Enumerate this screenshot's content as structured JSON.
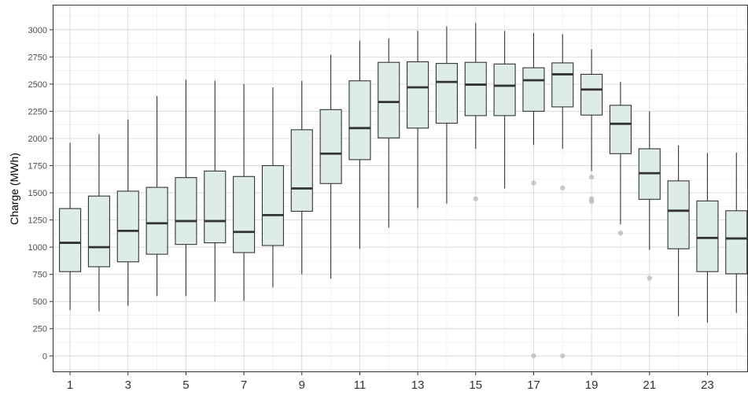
{
  "chart_data": {
    "type": "boxplot",
    "ylabel": "Charge (MWh)",
    "xlabel": "",
    "y_ticks": [
      0,
      250,
      500,
      750,
      1000,
      1250,
      1500,
      1750,
      2000,
      2250,
      2500,
      2750,
      3000
    ],
    "x_tick_labels": [
      "1",
      "3",
      "5",
      "7",
      "9",
      "11",
      "13",
      "15",
      "17",
      "19",
      "21",
      "23"
    ],
    "ylim": [
      -150,
      3230
    ],
    "xlim": [
      0.4,
      24.4
    ],
    "grid": true,
    "box_fill": "#deece8",
    "box_stroke": "#333333",
    "outlier_color": "#bbbbbb",
    "boxes": [
      {
        "x": 1,
        "min": 420,
        "q1": 775,
        "median": 1040,
        "q3": 1355,
        "max": 1960,
        "outliers": []
      },
      {
        "x": 2,
        "min": 410,
        "q1": 820,
        "median": 1000,
        "q3": 1470,
        "max": 2040,
        "outliers": []
      },
      {
        "x": 3,
        "min": 460,
        "q1": 865,
        "median": 1150,
        "q3": 1515,
        "max": 2175,
        "outliers": []
      },
      {
        "x": 4,
        "min": 550,
        "q1": 935,
        "median": 1220,
        "q3": 1550,
        "max": 2390,
        "outliers": []
      },
      {
        "x": 5,
        "min": 550,
        "q1": 1025,
        "median": 1240,
        "q3": 1640,
        "max": 2540,
        "outliers": []
      },
      {
        "x": 6,
        "min": 500,
        "q1": 1040,
        "median": 1240,
        "q3": 1700,
        "max": 2530,
        "outliers": []
      },
      {
        "x": 7,
        "min": 505,
        "q1": 950,
        "median": 1140,
        "q3": 1650,
        "max": 2500,
        "outliers": []
      },
      {
        "x": 8,
        "min": 630,
        "q1": 1015,
        "median": 1295,
        "q3": 1750,
        "max": 2470,
        "outliers": []
      },
      {
        "x": 9,
        "min": 750,
        "q1": 1330,
        "median": 1540,
        "q3": 2080,
        "max": 2530,
        "outliers": []
      },
      {
        "x": 10,
        "min": 710,
        "q1": 1585,
        "median": 1860,
        "q3": 2265,
        "max": 2770,
        "outliers": []
      },
      {
        "x": 11,
        "min": 985,
        "q1": 1805,
        "median": 2095,
        "q3": 2530,
        "max": 2900,
        "outliers": []
      },
      {
        "x": 12,
        "min": 1180,
        "q1": 2005,
        "median": 2335,
        "q3": 2700,
        "max": 2920,
        "outliers": []
      },
      {
        "x": 13,
        "min": 1360,
        "q1": 2095,
        "median": 2470,
        "q3": 2705,
        "max": 2990,
        "outliers": []
      },
      {
        "x": 14,
        "min": 1400,
        "q1": 2140,
        "median": 2520,
        "q3": 2690,
        "max": 3030,
        "outliers": []
      },
      {
        "x": 15,
        "min": 1905,
        "q1": 2210,
        "median": 2495,
        "q3": 2700,
        "max": 3060,
        "outliers": [
          1445
        ]
      },
      {
        "x": 16,
        "min": 1540,
        "q1": 2210,
        "median": 2485,
        "q3": 2685,
        "max": 2990,
        "outliers": []
      },
      {
        "x": 17,
        "min": 1940,
        "q1": 2250,
        "median": 2535,
        "q3": 2650,
        "max": 2970,
        "outliers": [
          1590,
          0
        ]
      },
      {
        "x": 18,
        "min": 1905,
        "q1": 2290,
        "median": 2590,
        "q3": 2695,
        "max": 2960,
        "outliers": [
          1545,
          0
        ]
      },
      {
        "x": 19,
        "min": 1700,
        "q1": 2215,
        "median": 2450,
        "q3": 2590,
        "max": 2820,
        "outliers": [
          1645,
          1445,
          1420
        ]
      },
      {
        "x": 20,
        "min": 1210,
        "q1": 1860,
        "median": 2135,
        "q3": 2305,
        "max": 2520,
        "outliers": [
          1130
        ]
      },
      {
        "x": 21,
        "min": 975,
        "q1": 1440,
        "median": 1680,
        "q3": 1905,
        "max": 2250,
        "outliers": [
          715
        ]
      },
      {
        "x": 22,
        "min": 365,
        "q1": 985,
        "median": 1335,
        "q3": 1610,
        "max": 1935,
        "outliers": []
      },
      {
        "x": 23,
        "min": 305,
        "q1": 775,
        "median": 1085,
        "q3": 1425,
        "max": 1865,
        "outliers": []
      },
      {
        "x": 24,
        "min": 395,
        "q1": 755,
        "median": 1080,
        "q3": 1335,
        "max": 1870,
        "outliers": []
      }
    ]
  }
}
